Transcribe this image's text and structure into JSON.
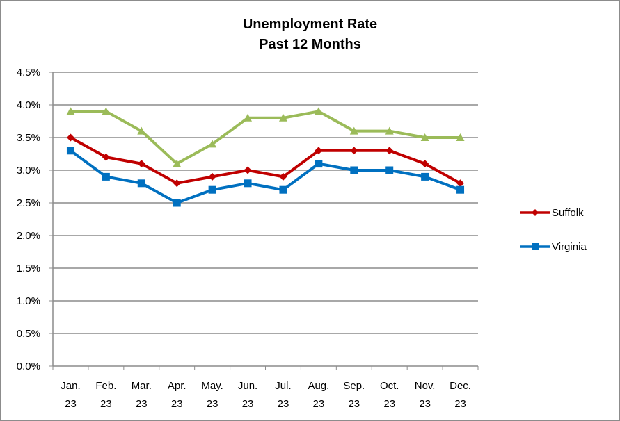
{
  "chart_data": {
    "type": "line",
    "title_line1": "Unemployment Rate",
    "title_line2": "Past 12 Months",
    "xlabel": "",
    "ylabel": "",
    "categories": [
      [
        "Jan.",
        "23"
      ],
      [
        "Feb.",
        "23"
      ],
      [
        "Mar.",
        "23"
      ],
      [
        "Apr.",
        "23"
      ],
      [
        "May.",
        "23"
      ],
      [
        "Jun.",
        "23"
      ],
      [
        "Jul.",
        "23"
      ],
      [
        "Aug.",
        "23"
      ],
      [
        "Sep.",
        "23"
      ],
      [
        "Oct.",
        "23"
      ],
      [
        "Nov.",
        "23"
      ],
      [
        "Dec.",
        "23"
      ]
    ],
    "ylim": [
      0,
      4.5
    ],
    "yticks": [
      "0.0%",
      "0.5%",
      "1.0%",
      "1.5%",
      "2.0%",
      "2.5%",
      "3.0%",
      "3.5%",
      "4.0%",
      "4.5%"
    ],
    "ystep": 0.5,
    "grid": true,
    "legend_position": "right",
    "series": [
      {
        "name": "",
        "color": "#9bbb59",
        "marker": "triangle",
        "values": [
          3.9,
          3.9,
          3.6,
          3.1,
          3.4,
          3.8,
          3.8,
          3.9,
          3.6,
          3.6,
          3.5,
          3.5
        ]
      },
      {
        "name": "Suffolk",
        "color": "#c00000",
        "marker": "diamond",
        "values": [
          3.5,
          3.2,
          3.1,
          2.8,
          2.9,
          3.0,
          2.9,
          3.3,
          3.3,
          3.3,
          3.1,
          2.8
        ]
      },
      {
        "name": "Virginia",
        "color": "#0070c0",
        "marker": "square",
        "values": [
          3.3,
          2.9,
          2.8,
          2.5,
          2.7,
          2.8,
          2.7,
          3.1,
          3.0,
          3.0,
          2.9,
          2.7
        ]
      }
    ],
    "gridline_color": "#8c8c8c",
    "axis_color": "#8c8c8c"
  },
  "legend": {
    "items": [
      {
        "label": "Suffolk",
        "color": "#c00000",
        "marker": "diamond"
      },
      {
        "label": "Virginia",
        "color": "#0070c0",
        "marker": "square"
      }
    ]
  }
}
